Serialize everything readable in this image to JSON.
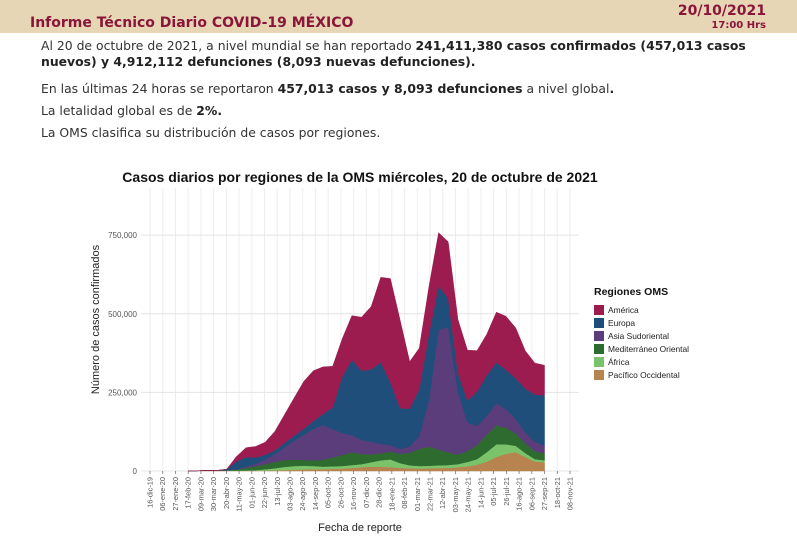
{
  "header": {
    "title": "Informe Técnico Diario COVID-19 MÉXICO",
    "date": "20/10/2021",
    "time": "17:00 Hrs"
  },
  "paragraphs": {
    "p1": {
      "a": "Al 20 de octubre de 2021, a nivel mundial se han reportado ",
      "b": "241,411,380 casos confirmados (457,013 casos nuevos) y 4,912,112 defunciones (8,093 nuevas defunciones)."
    },
    "p2": {
      "a": "En las últimas 24 horas se reportaron ",
      "b": "457,013 casos y 8,093 defunciones",
      "c": " a nivel global",
      "d": "."
    },
    "p3": {
      "a": "La letalidad global es de ",
      "b": "2%."
    },
    "p4": {
      "a": "La OMS clasifica su distribución de casos por regiones."
    }
  },
  "chart_data": {
    "type": "area",
    "title": "Casos diarios por regiones de la OMS miércoles, 20 de octubre de 2021",
    "xlabel": "Fecha de reporte",
    "ylabel": "Número de casos confirmados",
    "ylim": [
      0,
      900000
    ],
    "yticks": [
      0,
      250000,
      500000,
      750000
    ],
    "ytick_labels": [
      "0",
      "250,000",
      "500,000",
      "750,000"
    ],
    "x_tick_labels": [
      "16-dic-19",
      "06-ene-20",
      "27-ene-20",
      "17-feb-20",
      "09-mar-20",
      "30-mar-20",
      "20-abr-20",
      "11-may-20",
      "01-jun-20",
      "22-jun-20",
      "13-jul-20",
      "03-ago-20",
      "24-ago-20",
      "14-sep-20",
      "05-oct-20",
      "26-oct-20",
      "16-nov-20",
      "07-dic-20",
      "28-dic-20",
      "18-ene-21",
      "08-feb-21",
      "01-mar-21",
      "22-mar-21",
      "12-abr-21",
      "03-may-21",
      "24-may-21",
      "14-jun-21",
      "05-jul-21",
      "26-jul-21",
      "16-ago-21",
      "06-sep-21",
      "27-sep-21",
      "18-oct-21",
      "08-nov-21"
    ],
    "grid": true,
    "legend_position": "right",
    "legend_title": "Regiones OMS",
    "series": [
      {
        "name": "Pacífico Occidental",
        "color": "#b7834f",
        "values": [
          0,
          500,
          2000,
          2000,
          1500,
          1000,
          1000,
          1000,
          1500,
          2000,
          3000,
          4000,
          5000,
          6000,
          6000,
          7000,
          8000,
          10000,
          12000,
          14000,
          14000,
          12000,
          10000,
          9000,
          8000,
          9000,
          10000,
          10000,
          12000,
          15000,
          20000,
          30000,
          45000,
          55000,
          60000,
          45000,
          30000,
          28000
        ]
      },
      {
        "name": "África",
        "color": "#7ac36a",
        "values": [
          0,
          0,
          0,
          0,
          100,
          500,
          1000,
          2000,
          4000,
          7000,
          10000,
          12000,
          12000,
          10000,
          8000,
          8000,
          8000,
          9000,
          10000,
          14000,
          20000,
          25000,
          15000,
          9000,
          8000,
          8000,
          8000,
          9000,
          10000,
          14000,
          18000,
          30000,
          40000,
          30000,
          20000,
          12000,
          8000,
          6000
        ]
      },
      {
        "name": "Mediterráneo Oriental",
        "color": "#2e6b2e",
        "values": [
          0,
          0,
          0,
          0,
          500,
          3000,
          8000,
          12000,
          16000,
          20000,
          22000,
          20000,
          18000,
          18000,
          22000,
          28000,
          35000,
          40000,
          32000,
          25000,
          22000,
          25000,
          30000,
          40000,
          55000,
          60000,
          50000,
          40000,
          30000,
          35000,
          45000,
          55000,
          60000,
          52000,
          40000,
          30000,
          25000,
          22000
        ]
      },
      {
        "name": "Asia Sudoriental",
        "color": "#5a3d7a",
        "values": [
          0,
          0,
          0,
          0,
          200,
          1000,
          4000,
          8000,
          15000,
          25000,
          40000,
          60000,
          80000,
          100000,
          110000,
          90000,
          70000,
          55000,
          45000,
          40000,
          30000,
          20000,
          15000,
          20000,
          40000,
          150000,
          380000,
          400000,
          200000,
          90000,
          60000,
          60000,
          70000,
          60000,
          45000,
          35000,
          30000,
          25000
        ]
      },
      {
        "name": "Europa",
        "color": "#1e4e79",
        "values": [
          0,
          0,
          0,
          0,
          3000,
          25000,
          30000,
          20000,
          15000,
          12000,
          14000,
          16000,
          20000,
          25000,
          35000,
          70000,
          180000,
          240000,
          220000,
          230000,
          260000,
          200000,
          130000,
          120000,
          150000,
          210000,
          140000,
          90000,
          60000,
          70000,
          110000,
          130000,
          130000,
          125000,
          130000,
          140000,
          150000,
          160000
        ]
      },
      {
        "name": "América",
        "color": "#9c1c50",
        "values": [
          0,
          0,
          0,
          0,
          300,
          15000,
          30000,
          35000,
          40000,
          60000,
          90000,
          120000,
          150000,
          160000,
          150000,
          130000,
          120000,
          140000,
          170000,
          200000,
          270000,
          330000,
          280000,
          150000,
          130000,
          150000,
          170000,
          180000,
          170000,
          160000,
          130000,
          130000,
          160000,
          170000,
          160000,
          120000,
          100000,
          95000
        ]
      }
    ]
  }
}
